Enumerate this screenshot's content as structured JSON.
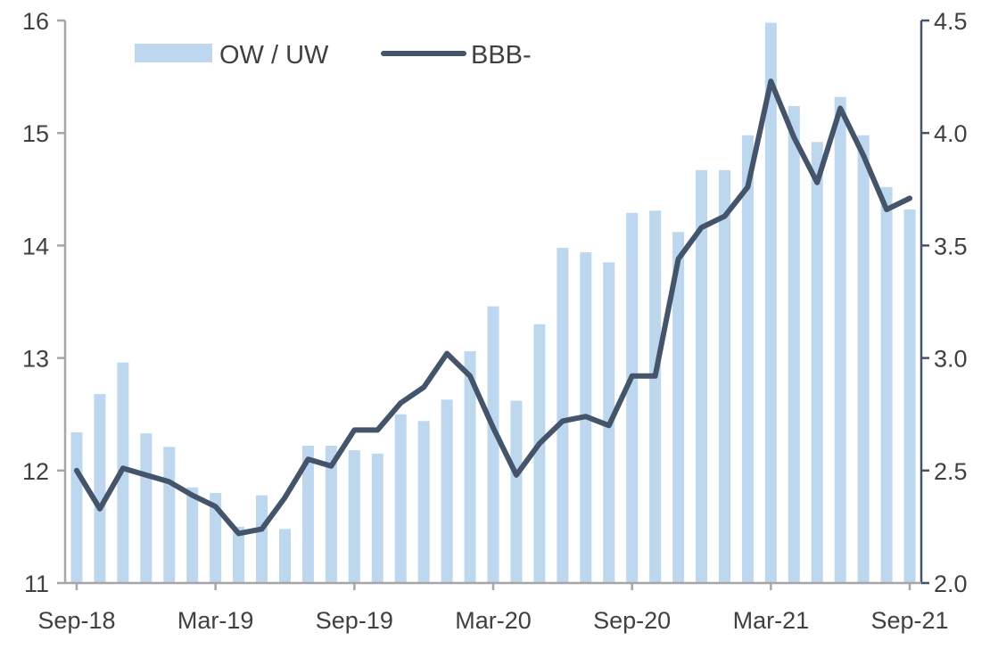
{
  "chart_data": {
    "type": "bar+line",
    "title": "",
    "x_labels_shown": [
      "Sep-18",
      "Mar-19",
      "Sep-19",
      "Mar-20",
      "Sep-20",
      "Mar-21",
      "Sep-21"
    ],
    "categories": [
      "Sep-18",
      "Oct-18",
      "Nov-18",
      "Dec-18",
      "Jan-19",
      "Feb-19",
      "Mar-19",
      "Apr-19",
      "May-19",
      "Jun-19",
      "Jul-19",
      "Aug-19",
      "Sep-19",
      "Oct-19",
      "Nov-19",
      "Dec-19",
      "Jan-20",
      "Feb-20",
      "Mar-20",
      "Apr-20",
      "May-20",
      "Jun-20",
      "Jul-20",
      "Aug-20",
      "Sep-20",
      "Oct-20",
      "Nov-20",
      "Dec-20",
      "Jan-21",
      "Feb-21",
      "Mar-21",
      "Apr-21",
      "May-21",
      "Jun-21",
      "Jul-21",
      "Aug-21",
      "Sep-21"
    ],
    "series": [
      {
        "name": "OW / UW",
        "type": "bar",
        "axis": "left",
        "color": "#bdd7ee",
        "values": [
          12.34,
          12.68,
          12.96,
          12.33,
          12.21,
          11.85,
          11.8,
          11.5,
          11.78,
          11.48,
          12.22,
          12.22,
          12.18,
          12.15,
          12.5,
          12.44,
          12.63,
          13.06,
          13.46,
          12.62,
          13.3,
          13.98,
          13.94,
          13.85,
          14.29,
          14.31,
          14.12,
          14.67,
          14.67,
          14.98,
          15.98,
          15.24,
          14.92,
          15.32,
          14.98,
          14.52,
          14.32
        ]
      },
      {
        "name": "BBB-",
        "type": "line",
        "axis": "right",
        "color": "#44546a",
        "values": [
          2.5,
          2.33,
          2.51,
          2.48,
          2.45,
          2.39,
          2.34,
          2.22,
          2.24,
          2.38,
          2.55,
          2.52,
          2.68,
          2.68,
          2.8,
          2.87,
          3.02,
          2.92,
          2.69,
          2.48,
          2.62,
          2.72,
          2.74,
          2.7,
          2.92,
          2.92,
          3.44,
          3.58,
          3.63,
          3.76,
          4.23,
          3.98,
          3.78,
          4.11,
          3.9,
          3.66,
          3.71
        ]
      }
    ],
    "y_left": {
      "min": 11,
      "max": 16,
      "ticks": [
        "11",
        "12",
        "13",
        "14",
        "15",
        "16"
      ]
    },
    "y_right": {
      "min": 2.0,
      "max": 4.5,
      "ticks": [
        "2.0",
        "2.5",
        "3.0",
        "3.5",
        "4.0",
        "4.5"
      ]
    },
    "grid": false,
    "legend_position": "top-left",
    "axis_color": "#44546a"
  }
}
